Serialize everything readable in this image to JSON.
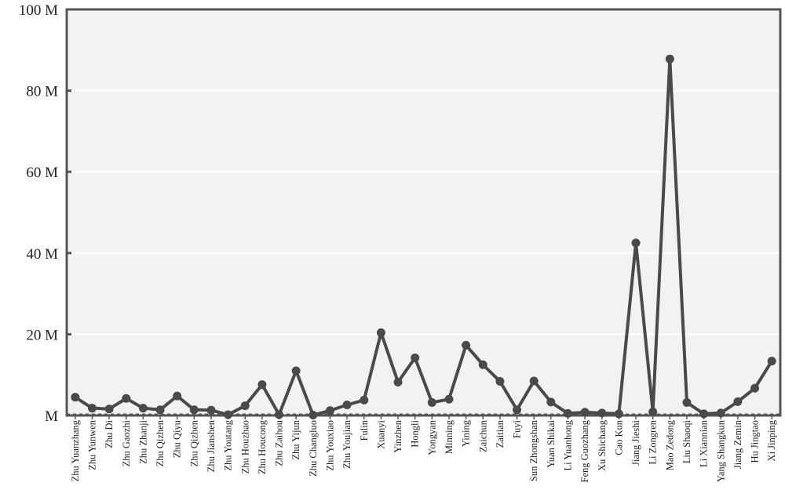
{
  "chart_data": {
    "type": "line",
    "title": "",
    "xlabel": "",
    "ylabel": "",
    "ylim": [
      0,
      100
    ],
    "y_unit_suffix": " M",
    "y_ticks": [
      0,
      20,
      40,
      60,
      80,
      100
    ],
    "y_tick_labels": [
      "M",
      "20 M",
      "40 M",
      "60 M",
      "80 M",
      "100 M"
    ],
    "grid": true,
    "legend": "none",
    "colors": {
      "line": "#4a4a4a",
      "plot_background": "#f2f2f2",
      "gridline": "#ffffff",
      "axis": "#555555"
    },
    "categories": [
      "Zhu Yuanzhang",
      "Zhu Yunwen",
      "Zhu Di",
      "Zhu Gaozhi",
      "Zhu Zhanji",
      "Zhu Qizhen",
      "Zhu Qiyu",
      "Zhu Qizhen",
      "Zhu Jianshen",
      "Zhu Youtang",
      "Zhu Houzhao",
      "Zhu Houcong",
      "Zhu Zaihou",
      "Zhu Yijun",
      "Zhu Changluo",
      "Zhu Youxiao",
      "Zhu Youjian",
      "Fulin",
      "Xuanyi",
      "Yinzhen",
      "Hongli",
      "Yongyan",
      "Minning",
      "Yining",
      "Zaichun",
      "Zaitian",
      "Fuyi",
      "Sun Zhongshan",
      "Yuan Shikai",
      "Li Yuanhong",
      "Feng Guozhang",
      "Xu Shichang",
      "Cao Kun",
      "Jiang Jieshi",
      "Li Zongren",
      "Mao Zedong",
      "Liu Shaoqi",
      "Li Xiannian",
      "Yang Shangkun",
      "Jiang Zemin",
      "Hu Jingtao",
      "Xi Jinping"
    ],
    "series": [
      {
        "values": [
          4.5,
          1.8,
          1.6,
          4.2,
          1.8,
          1.4,
          4.8,
          1.4,
          1.3,
          0.2,
          2.4,
          7.6,
          0.2,
          11.0,
          0.1,
          1.2,
          2.6,
          3.8,
          20.4,
          8.2,
          14.2,
          3.2,
          4.0,
          17.3,
          12.5,
          8.4,
          1.4,
          8.5,
          3.3,
          0.5,
          0.8,
          0.6,
          0.4,
          42.5,
          0.9,
          87.8,
          3.2,
          0.4,
          0.6,
          3.4,
          6.7,
          13.4
        ]
      }
    ]
  }
}
